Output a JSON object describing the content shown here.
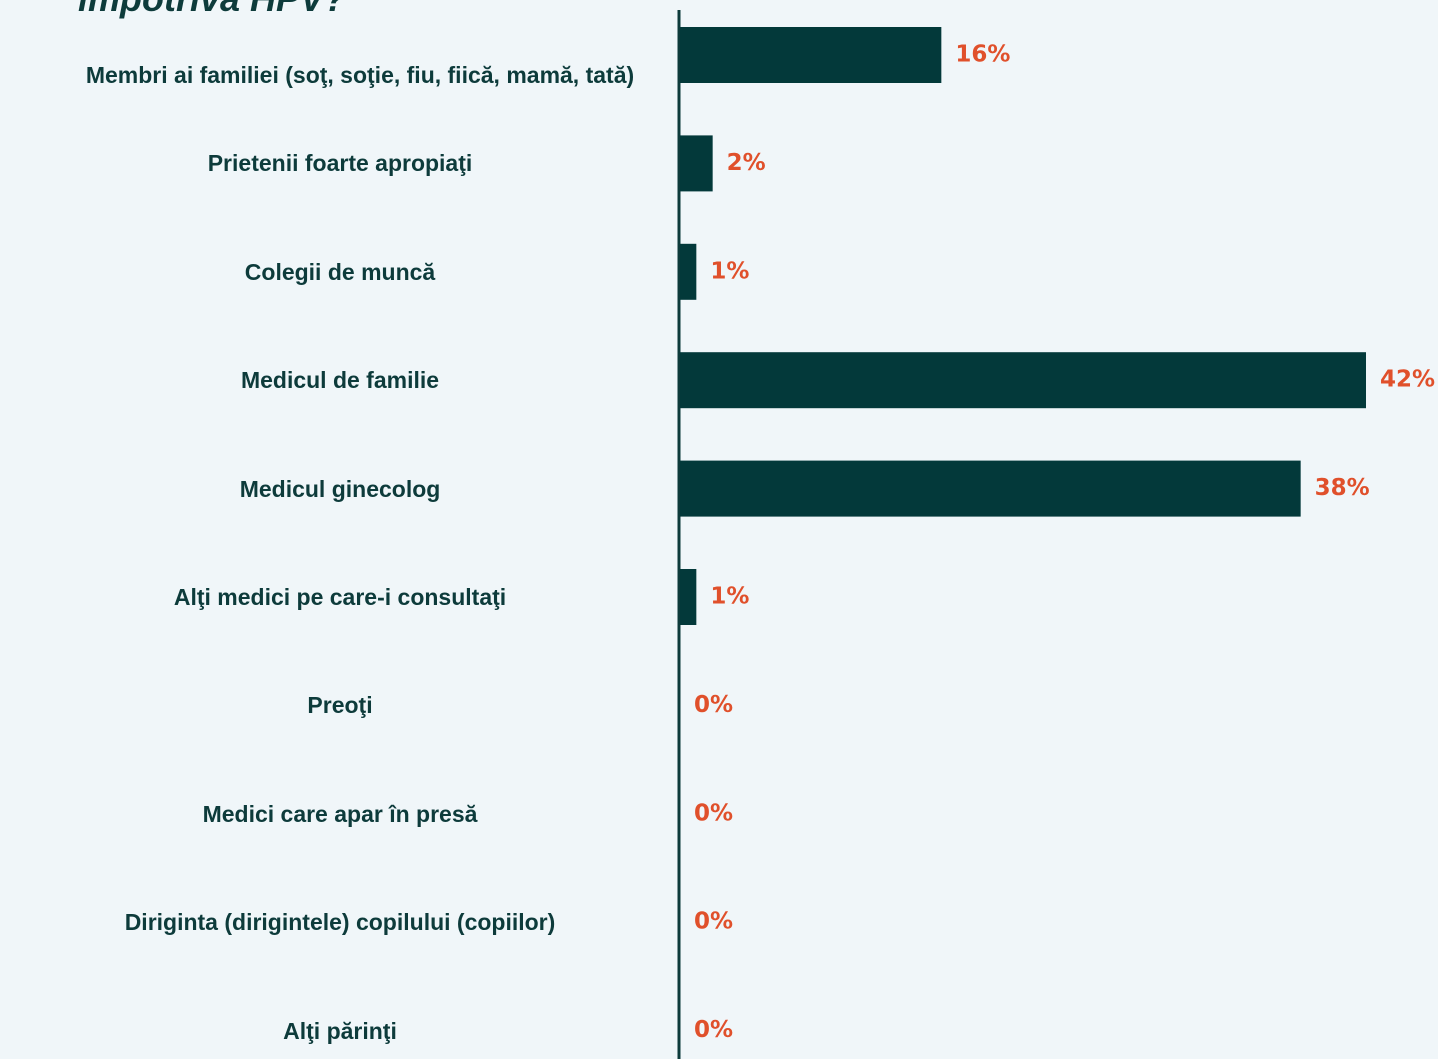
{
  "chart_data": {
    "type": "bar",
    "orientation": "horizontal",
    "title": "împotriva HPV?",
    "categories": [
      "Membri ai familiei (soţ, soţie, fiu, fiică, mamă, tată)",
      "Prietenii foarte apropiaţi",
      "Colegii de muncă",
      "Medicul de familie",
      "Medicul ginecolog",
      "Alţi medici pe care-i consultaţi",
      "Preoţi",
      "Medici care apar în presă",
      "Diriginta (dirigintele) copilului (copiilor)",
      "Alţi părinţi"
    ],
    "values": [
      16,
      2,
      1,
      42,
      38,
      1,
      0,
      0,
      0,
      0
    ],
    "value_labels": [
      "16%",
      "2%",
      "1%",
      "42%",
      "38%",
      "1%",
      "0%",
      "0%",
      "0%",
      "0%"
    ],
    "color": "#03393a",
    "label_color": "#e0502b"
  }
}
